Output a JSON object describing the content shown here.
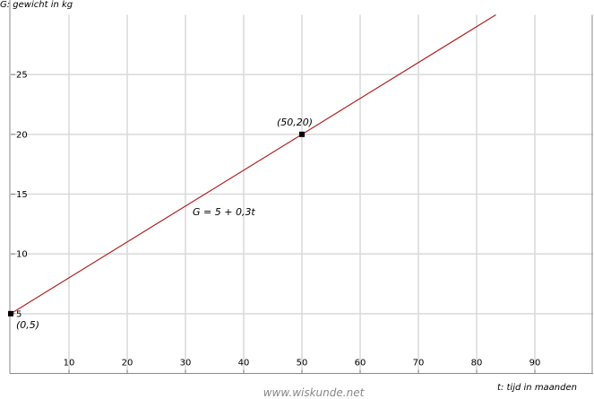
{
  "chart_data": {
    "type": "line",
    "y_label": "G: gewicht in kg",
    "x_label": "t: tijd in maanden",
    "xlim": [
      0,
      100
    ],
    "ylim": [
      0,
      30
    ],
    "xticks": [
      10,
      20,
      30,
      40,
      50,
      60,
      70,
      80,
      90
    ],
    "yticks": [
      5,
      10,
      15,
      20,
      25
    ],
    "grid": true,
    "series": [
      {
        "name": "G = 5 + 0,3t",
        "color": "#b22222",
        "x": [
          0,
          50,
          83.3
        ],
        "values": [
          5,
          20,
          30
        ]
      }
    ],
    "points": [
      {
        "x": 0,
        "y": 5,
        "label": "(0,5)"
      },
      {
        "x": 50,
        "y": 20,
        "label": "(50,20)"
      }
    ]
  },
  "footer": "www.wiskunde.net"
}
